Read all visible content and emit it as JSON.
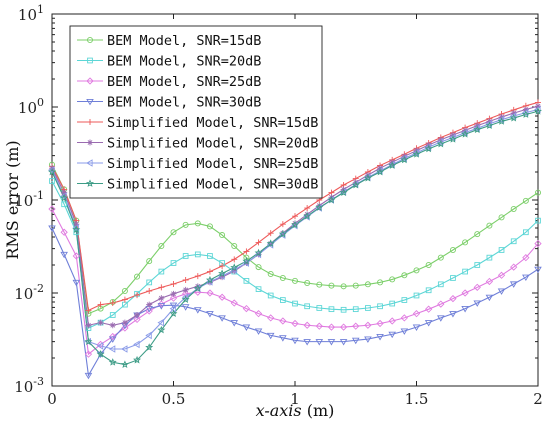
{
  "chart_data": {
    "type": "line",
    "xlabel": "x-axis (m)",
    "ylabel": "RMS error (m)",
    "xlim": [
      0,
      2
    ],
    "ylim": [
      0.001,
      10
    ],
    "yscale": "log",
    "xticks": [
      0,
      0.5,
      1,
      1.5,
      2
    ],
    "xtick_labels": [
      "0",
      "0.5",
      "1",
      "1.5",
      "2"
    ],
    "yticks": [
      0.001,
      0.01,
      0.1,
      1,
      10
    ],
    "ytick_labels": [
      {
        "base": "10",
        "exp": "-3"
      },
      {
        "base": "10",
        "exp": "-2"
      },
      {
        "base": "10",
        "exp": "-1"
      },
      {
        "base": "10",
        "exp": "0"
      },
      {
        "base": "10",
        "exp": "1"
      }
    ],
    "grid": false,
    "legend_position": "top-left",
    "x": [
      0,
      0.05,
      0.1,
      0.15,
      0.2,
      0.25,
      0.3,
      0.35,
      0.4,
      0.45,
      0.5,
      0.55,
      0.6,
      0.65,
      0.7,
      0.75,
      0.8,
      0.85,
      0.9,
      0.95,
      1.0,
      1.05,
      1.1,
      1.15,
      1.2,
      1.25,
      1.3,
      1.35,
      1.4,
      1.45,
      1.5,
      1.55,
      1.6,
      1.65,
      1.7,
      1.75,
      1.8,
      1.85,
      1.9,
      1.95,
      2.0
    ],
    "series": [
      {
        "name": "BEM Model, SNR=15dB",
        "color": "#7ccf6a",
        "marker": "circle",
        "values": [
          0.24,
          0.13,
          0.06,
          0.006,
          0.0068,
          0.008,
          0.0105,
          0.015,
          0.022,
          0.032,
          0.045,
          0.054,
          0.056,
          0.052,
          0.042,
          0.032,
          0.024,
          0.019,
          0.016,
          0.0145,
          0.0135,
          0.0128,
          0.0123,
          0.012,
          0.0118,
          0.012,
          0.0124,
          0.013,
          0.014,
          0.0155,
          0.0175,
          0.02,
          0.024,
          0.029,
          0.035,
          0.043,
          0.053,
          0.065,
          0.08,
          0.098,
          0.12
        ]
      },
      {
        "name": "BEM Model, SNR=20dB",
        "color": "#5cd6d6",
        "marker": "square",
        "values": [
          0.16,
          0.09,
          0.045,
          0.0042,
          0.0048,
          0.0058,
          0.0075,
          0.0098,
          0.013,
          0.017,
          0.021,
          0.025,
          0.026,
          0.025,
          0.021,
          0.017,
          0.0135,
          0.011,
          0.0094,
          0.0084,
          0.0077,
          0.0072,
          0.0069,
          0.0067,
          0.0066,
          0.0067,
          0.0069,
          0.0072,
          0.0077,
          0.0084,
          0.0094,
          0.0107,
          0.0124,
          0.0145,
          0.017,
          0.02,
          0.024,
          0.029,
          0.036,
          0.045,
          0.06
        ]
      },
      {
        "name": "BEM Model, SNR=25dB",
        "color": "#e07be0",
        "marker": "diamond",
        "values": [
          0.08,
          0.045,
          0.025,
          0.0022,
          0.0028,
          0.0034,
          0.0042,
          0.0052,
          0.0064,
          0.0076,
          0.0088,
          0.0098,
          0.0102,
          0.01,
          0.009,
          0.0078,
          0.0068,
          0.006,
          0.0054,
          0.005,
          0.0047,
          0.0045,
          0.0044,
          0.0043,
          0.0043,
          0.0044,
          0.0045,
          0.0047,
          0.005,
          0.0054,
          0.006,
          0.0067,
          0.0076,
          0.0087,
          0.01,
          0.0115,
          0.0133,
          0.0155,
          0.019,
          0.024,
          0.034
        ]
      },
      {
        "name": "BEM Model, SNR=30dB",
        "color": "#6f7fd8",
        "marker": "triangle-down",
        "values": [
          0.05,
          0.026,
          0.013,
          0.0013,
          0.0022,
          0.0032,
          0.0045,
          0.0058,
          0.0068,
          0.0073,
          0.0074,
          0.0071,
          0.0066,
          0.006,
          0.0054,
          0.0048,
          0.0043,
          0.0039,
          0.0035,
          0.0033,
          0.0031,
          0.003,
          0.003,
          0.003,
          0.003,
          0.0031,
          0.0032,
          0.0034,
          0.0036,
          0.0039,
          0.0043,
          0.0048,
          0.0054,
          0.006,
          0.0068,
          0.0078,
          0.009,
          0.0105,
          0.0125,
          0.0148,
          0.018
        ]
      },
      {
        "name": "Simplified Model, SNR=15dB",
        "color": "#ee5a5a",
        "marker": "plus",
        "values": [
          0.23,
          0.13,
          0.06,
          0.0065,
          0.0075,
          0.0078,
          0.0085,
          0.0095,
          0.0105,
          0.0115,
          0.0125,
          0.0138,
          0.0152,
          0.017,
          0.0195,
          0.023,
          0.028,
          0.035,
          0.044,
          0.055,
          0.067,
          0.082,
          0.1,
          0.12,
          0.145,
          0.17,
          0.2,
          0.235,
          0.27,
          0.31,
          0.36,
          0.41,
          0.47,
          0.53,
          0.6,
          0.67,
          0.75,
          0.84,
          0.93,
          1.03,
          1.12
        ]
      },
      {
        "name": "Simplified Model, SNR=20dB",
        "color": "#9a6bb0",
        "marker": "asterisk",
        "values": [
          0.22,
          0.12,
          0.055,
          0.0045,
          0.0048,
          0.0045,
          0.0048,
          0.0058,
          0.0075,
          0.0088,
          0.0098,
          0.0108,
          0.0118,
          0.013,
          0.0148,
          0.0172,
          0.021,
          0.026,
          0.034,
          0.044,
          0.056,
          0.07,
          0.087,
          0.107,
          0.13,
          0.155,
          0.185,
          0.22,
          0.255,
          0.295,
          0.34,
          0.39,
          0.445,
          0.5,
          0.56,
          0.63,
          0.7,
          0.78,
          0.86,
          0.94,
          1.02
        ]
      },
      {
        "name": "Simplified Model, SNR=25dB",
        "color": "#8a9be8",
        "marker": "triangle-left",
        "values": [
          0.21,
          0.11,
          0.05,
          0.003,
          0.0027,
          0.0025,
          0.0025,
          0.0028,
          0.0035,
          0.0048,
          0.0068,
          0.009,
          0.0112,
          0.0132,
          0.0152,
          0.0178,
          0.021,
          0.026,
          0.033,
          0.042,
          0.053,
          0.066,
          0.082,
          0.1,
          0.122,
          0.147,
          0.175,
          0.205,
          0.24,
          0.28,
          0.32,
          0.37,
          0.42,
          0.47,
          0.53,
          0.59,
          0.66,
          0.73,
          0.8,
          0.87,
          0.94
        ]
      },
      {
        "name": "Simplified Model, SNR=30dB",
        "color": "#3d9c86",
        "marker": "star",
        "values": [
          0.2,
          0.105,
          0.048,
          0.003,
          0.0022,
          0.0018,
          0.0017,
          0.0019,
          0.0026,
          0.004,
          0.006,
          0.0085,
          0.0112,
          0.0138,
          0.0162,
          0.0188,
          0.022,
          0.027,
          0.034,
          0.043,
          0.054,
          0.067,
          0.083,
          0.1,
          0.12,
          0.145,
          0.172,
          0.2,
          0.235,
          0.27,
          0.31,
          0.355,
          0.4,
          0.45,
          0.51,
          0.57,
          0.63,
          0.7,
          0.76,
          0.83,
          0.9
        ]
      }
    ]
  }
}
